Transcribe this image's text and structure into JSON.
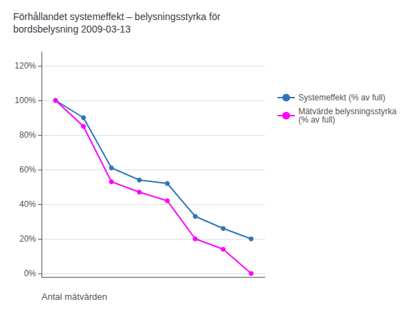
{
  "chart_data": {
    "type": "line",
    "title": "Förhållandet systemeffekt – belysningsstyrka för\nbordsbelysning 2009-03-13",
    "xlabel": "Antal mätvärden",
    "x": [
      1,
      2,
      3,
      4,
      5,
      6,
      7,
      8
    ],
    "series": [
      {
        "name": "Systemeffekt (% av full)",
        "color": "#2E75B6",
        "marker": "circle",
        "values": [
          1.0,
          0.9,
          0.61,
          0.54,
          0.52,
          0.33,
          0.26,
          0.2
        ]
      },
      {
        "name": "Mätvärde belysningsstyrka\n(% av full)",
        "color": "#FF00FF",
        "marker": "circle",
        "values": [
          1.0,
          0.85,
          0.53,
          0.47,
          0.42,
          0.2,
          0.14,
          0.0
        ]
      }
    ],
    "xlim": [
      0.5,
      8.5
    ],
    "xticks": [],
    "ylim": [
      -0.02,
      1.28
    ],
    "yticks": [
      {
        "value": 0.0,
        "label": "0%"
      },
      {
        "value": 0.2,
        "label": "20%"
      },
      {
        "value": 0.4,
        "label": "40%"
      },
      {
        "value": 0.6,
        "label": "60%"
      },
      {
        "value": 0.8,
        "label": "80%"
      },
      {
        "value": 1.0,
        "label": "100%"
      },
      {
        "value": 1.2,
        "label": "120%"
      }
    ],
    "grid": true,
    "legend": "right",
    "tick_labels": "y"
  }
}
